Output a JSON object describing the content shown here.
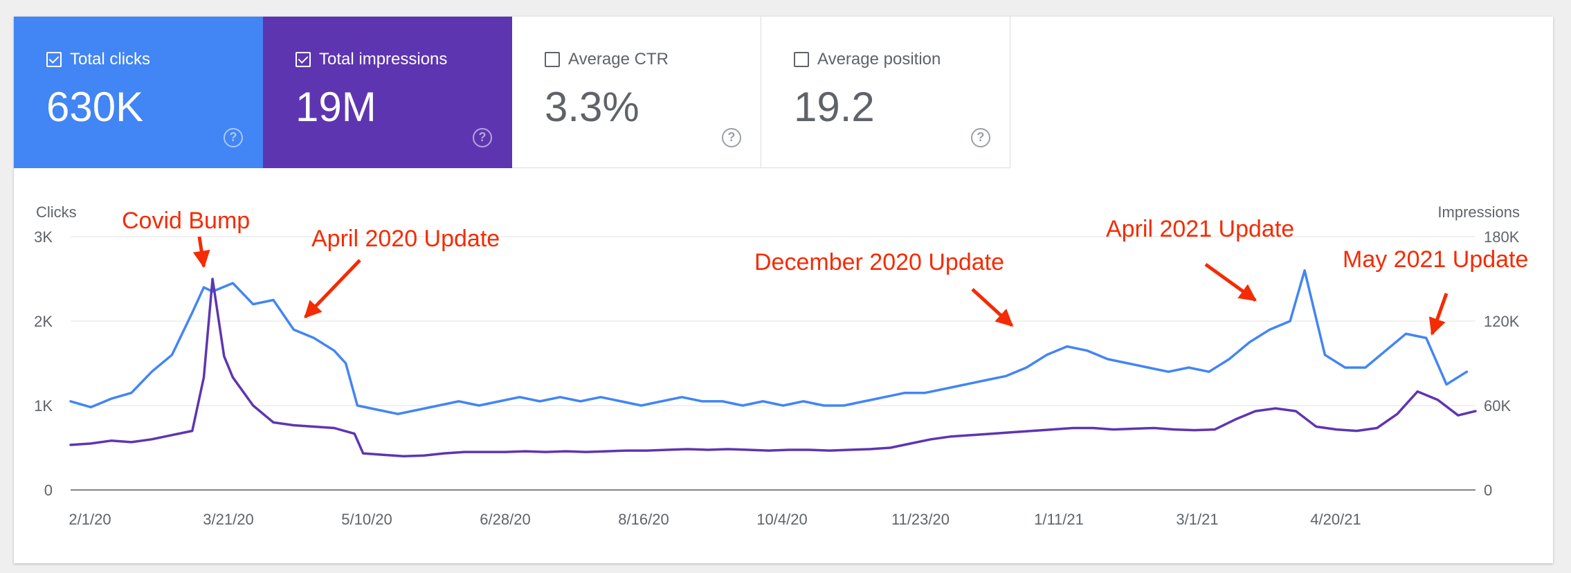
{
  "metrics": [
    {
      "label": "Total clicks",
      "value": "630K",
      "checked": true,
      "color": "#4285f4"
    },
    {
      "label": "Total impressions",
      "value": "19M",
      "checked": true,
      "color": "#5e35b1"
    },
    {
      "label": "Average CTR",
      "value": "3.3%",
      "checked": false
    },
    {
      "label": "Average position",
      "value": "19.2",
      "checked": false
    }
  ],
  "help_glyph": "?",
  "chart_data": {
    "type": "line",
    "x_tick_labels": [
      "2/1/20",
      "3/21/20",
      "5/10/20",
      "6/28/20",
      "8/16/20",
      "10/4/20",
      "11/23/20",
      "1/11/21",
      "3/1/21",
      "4/20/21"
    ],
    "x_range": [
      "2020-02-01",
      "2021-05-31"
    ],
    "y_left": {
      "label": "Clicks",
      "ticks": [
        "0",
        "1K",
        "2K",
        "3K"
      ],
      "range": [
        0,
        3000
      ]
    },
    "y_right": {
      "label": "Impressions",
      "ticks": [
        "0",
        "60K",
        "120K",
        "180K"
      ],
      "range": [
        0,
        180000
      ]
    },
    "grid": true,
    "series": [
      {
        "name": "Total clicks",
        "axis": "left",
        "color": "#4285f4",
        "points": [
          [
            "2020-02-01",
            1050
          ],
          [
            "2020-02-08",
            980
          ],
          [
            "2020-02-15",
            1080
          ],
          [
            "2020-02-22",
            1150
          ],
          [
            "2020-02-29",
            1400
          ],
          [
            "2020-03-07",
            1600
          ],
          [
            "2020-03-14",
            2100
          ],
          [
            "2020-03-18",
            2400
          ],
          [
            "2020-03-21",
            2350
          ],
          [
            "2020-03-28",
            2450
          ],
          [
            "2020-04-04",
            2200
          ],
          [
            "2020-04-11",
            2250
          ],
          [
            "2020-04-18",
            1900
          ],
          [
            "2020-04-25",
            1800
          ],
          [
            "2020-05-02",
            1650
          ],
          [
            "2020-05-06",
            1500
          ],
          [
            "2020-05-10",
            1000
          ],
          [
            "2020-05-17",
            950
          ],
          [
            "2020-05-24",
            900
          ],
          [
            "2020-05-31",
            950
          ],
          [
            "2020-06-07",
            1000
          ],
          [
            "2020-06-14",
            1050
          ],
          [
            "2020-06-21",
            1000
          ],
          [
            "2020-06-28",
            1050
          ],
          [
            "2020-07-05",
            1100
          ],
          [
            "2020-07-12",
            1050
          ],
          [
            "2020-07-19",
            1100
          ],
          [
            "2020-07-26",
            1050
          ],
          [
            "2020-08-02",
            1100
          ],
          [
            "2020-08-09",
            1050
          ],
          [
            "2020-08-16",
            1000
          ],
          [
            "2020-08-23",
            1050
          ],
          [
            "2020-08-30",
            1100
          ],
          [
            "2020-09-06",
            1050
          ],
          [
            "2020-09-13",
            1050
          ],
          [
            "2020-09-20",
            1000
          ],
          [
            "2020-09-27",
            1050
          ],
          [
            "2020-10-04",
            1000
          ],
          [
            "2020-10-11",
            1050
          ],
          [
            "2020-10-18",
            1000
          ],
          [
            "2020-10-25",
            1000
          ],
          [
            "2020-11-01",
            1050
          ],
          [
            "2020-11-08",
            1100
          ],
          [
            "2020-11-15",
            1150
          ],
          [
            "2020-11-22",
            1150
          ],
          [
            "2020-11-29",
            1200
          ],
          [
            "2020-12-06",
            1250
          ],
          [
            "2020-12-13",
            1300
          ],
          [
            "2020-12-20",
            1350
          ],
          [
            "2020-12-27",
            1450
          ],
          [
            "2021-01-03",
            1600
          ],
          [
            "2021-01-10",
            1700
          ],
          [
            "2021-01-17",
            1650
          ],
          [
            "2021-01-24",
            1550
          ],
          [
            "2021-01-31",
            1500
          ],
          [
            "2021-02-07",
            1450
          ],
          [
            "2021-02-14",
            1400
          ],
          [
            "2021-02-21",
            1450
          ],
          [
            "2021-02-28",
            1400
          ],
          [
            "2021-03-07",
            1550
          ],
          [
            "2021-03-14",
            1750
          ],
          [
            "2021-03-21",
            1900
          ],
          [
            "2021-03-28",
            2000
          ],
          [
            "2021-04-02",
            2600
          ],
          [
            "2021-04-09",
            1600
          ],
          [
            "2021-04-16",
            1450
          ],
          [
            "2021-04-23",
            1450
          ],
          [
            "2021-04-30",
            1650
          ],
          [
            "2021-05-07",
            1850
          ],
          [
            "2021-05-14",
            1800
          ],
          [
            "2021-05-21",
            1250
          ],
          [
            "2021-05-28",
            1400
          ]
        ]
      },
      {
        "name": "Total impressions",
        "axis": "right",
        "color": "#5e35b1",
        "points": [
          [
            "2020-02-01",
            32000
          ],
          [
            "2020-02-08",
            33000
          ],
          [
            "2020-02-15",
            35000
          ],
          [
            "2020-02-22",
            34000
          ],
          [
            "2020-02-29",
            36000
          ],
          [
            "2020-03-07",
            39000
          ],
          [
            "2020-03-14",
            42000
          ],
          [
            "2020-03-18",
            80000
          ],
          [
            "2020-03-21",
            150000
          ],
          [
            "2020-03-25",
            95000
          ],
          [
            "2020-03-28",
            80000
          ],
          [
            "2020-04-04",
            60000
          ],
          [
            "2020-04-11",
            48000
          ],
          [
            "2020-04-18",
            46000
          ],
          [
            "2020-04-25",
            45000
          ],
          [
            "2020-05-02",
            44000
          ],
          [
            "2020-05-09",
            40000
          ],
          [
            "2020-05-12",
            26000
          ],
          [
            "2020-05-19",
            25000
          ],
          [
            "2020-05-26",
            24000
          ],
          [
            "2020-06-02",
            24500
          ],
          [
            "2020-06-09",
            26000
          ],
          [
            "2020-06-16",
            27000
          ],
          [
            "2020-06-23",
            27000
          ],
          [
            "2020-06-30",
            27000
          ],
          [
            "2020-07-07",
            27500
          ],
          [
            "2020-07-14",
            27000
          ],
          [
            "2020-07-21",
            27500
          ],
          [
            "2020-07-28",
            27000
          ],
          [
            "2020-08-04",
            27500
          ],
          [
            "2020-08-11",
            28000
          ],
          [
            "2020-08-18",
            28000
          ],
          [
            "2020-08-25",
            28500
          ],
          [
            "2020-09-01",
            29000
          ],
          [
            "2020-09-08",
            28500
          ],
          [
            "2020-09-15",
            29000
          ],
          [
            "2020-09-22",
            28500
          ],
          [
            "2020-09-29",
            28000
          ],
          [
            "2020-10-06",
            28500
          ],
          [
            "2020-10-13",
            28500
          ],
          [
            "2020-10-20",
            28000
          ],
          [
            "2020-10-27",
            28500
          ],
          [
            "2020-11-03",
            29000
          ],
          [
            "2020-11-10",
            30000
          ],
          [
            "2020-11-17",
            33000
          ],
          [
            "2020-11-24",
            36000
          ],
          [
            "2020-12-01",
            38000
          ],
          [
            "2020-12-08",
            39000
          ],
          [
            "2020-12-15",
            40000
          ],
          [
            "2020-12-22",
            41000
          ],
          [
            "2020-12-29",
            42000
          ],
          [
            "2021-01-05",
            43000
          ],
          [
            "2021-01-12",
            44000
          ],
          [
            "2021-01-19",
            44000
          ],
          [
            "2021-01-26",
            43000
          ],
          [
            "2021-02-02",
            43500
          ],
          [
            "2021-02-09",
            44000
          ],
          [
            "2021-02-16",
            43000
          ],
          [
            "2021-02-23",
            42500
          ],
          [
            "2021-03-02",
            43000
          ],
          [
            "2021-03-09",
            50000
          ],
          [
            "2021-03-16",
            56000
          ],
          [
            "2021-03-23",
            58000
          ],
          [
            "2021-03-30",
            56000
          ],
          [
            "2021-04-06",
            45000
          ],
          [
            "2021-04-13",
            43000
          ],
          [
            "2021-04-20",
            42000
          ],
          [
            "2021-04-27",
            44000
          ],
          [
            "2021-05-04",
            54000
          ],
          [
            "2021-05-11",
            70000
          ],
          [
            "2021-05-18",
            64000
          ],
          [
            "2021-05-25",
            53000
          ],
          [
            "2021-05-31",
            56000
          ]
        ]
      }
    ],
    "annotations": [
      {
        "text": "Covid Bump",
        "target": "2020-03-18",
        "axis": "left",
        "value": 2500
      },
      {
        "text": "April 2020 Update",
        "target": "2020-04-22",
        "axis": "left",
        "value": 1900
      },
      {
        "text": "December 2020 Update",
        "target": "2020-12-22",
        "axis": "left",
        "value": 1800
      },
      {
        "text": "April 2021 Update",
        "target": "2021-03-16",
        "axis": "left",
        "value": 2100
      },
      {
        "text": "May 2021 Update",
        "target": "2021-05-16",
        "axis": "left",
        "value": 1700
      }
    ]
  }
}
